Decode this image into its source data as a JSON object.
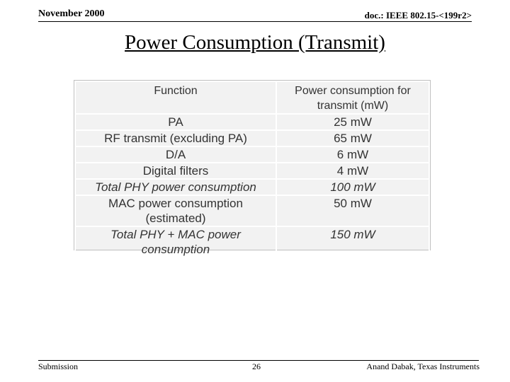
{
  "header": {
    "date": "November 2000",
    "doc": "doc.: IEEE 802.15-<199r2>"
  },
  "title": "Power Consumption (Transmit)",
  "table": {
    "columns": [
      "Function",
      "Power consumption for transmit (mW)"
    ],
    "rows": [
      {
        "function": "PA",
        "power": "25 mW",
        "italic": false
      },
      {
        "function": "RF transmit (excluding PA)",
        "power": "65 mW",
        "italic": false
      },
      {
        "function": "D/A",
        "power": "6 mW",
        "italic": false
      },
      {
        "function": "Digital filters",
        "power": "4 mW",
        "italic": false
      },
      {
        "function": "Total PHY power consumption",
        "power": "100 mW",
        "italic": true
      },
      {
        "function": "MAC power consumption (estimated)",
        "power": "50 mW",
        "italic": false
      },
      {
        "function": "Total PHY + MAC power consumption",
        "power": "150 mW",
        "italic": true
      }
    ]
  },
  "footer": {
    "left": "Submission",
    "page": "26",
    "right": "Anand Dabak, Texas Instruments"
  }
}
